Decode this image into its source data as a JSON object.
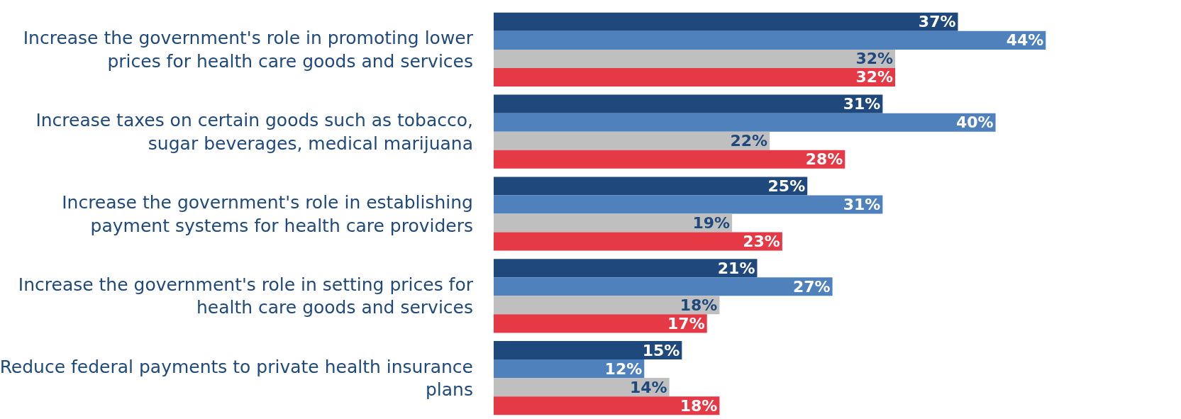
{
  "chart_data": {
    "type": "bar",
    "orientation": "horizontal",
    "categories": [
      "Increase the government's role in promoting lower prices for health care goods and services",
      "Increase taxes on certain goods such as tobacco, sugar beverages, medical marijuana",
      "Increase the government's role in establishing payment systems for health care providers",
      "Increase the government's role in setting prices for health care goods and services",
      "Reduce federal payments to private health insurance plans"
    ],
    "series": [
      {
        "color": "#1f497d",
        "values": [
          37,
          31,
          25,
          21,
          15
        ],
        "value_labels": [
          "37%",
          "31%",
          "25%",
          "21%",
          "15%"
        ]
      },
      {
        "color": "#4f81bd",
        "values": [
          44,
          40,
          31,
          27,
          12
        ],
        "value_labels": [
          "44%",
          "40%",
          "31%",
          "27%",
          "12%"
        ]
      },
      {
        "color": "#bfbfbf",
        "values": [
          32,
          22,
          19,
          18,
          14
        ],
        "value_labels": [
          "32%",
          "22%",
          "19%",
          "18%",
          "14%"
        ]
      },
      {
        "color": "#e63946",
        "values": [
          32,
          28,
          23,
          17,
          18
        ],
        "value_labels": [
          "32%",
          "28%",
          "23%",
          "17%",
          "18%"
        ]
      }
    ]
  }
}
